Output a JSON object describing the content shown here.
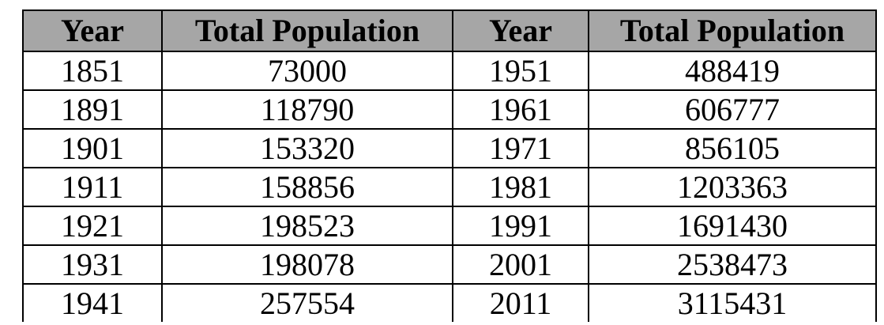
{
  "table": {
    "headers": [
      "Year",
      "Total Population",
      "Year",
      "Total Population"
    ],
    "rows": [
      [
        "1851",
        "73000",
        "1951",
        "488419"
      ],
      [
        "1891",
        "118790",
        "1961",
        "606777"
      ],
      [
        "1901",
        "153320",
        "1971",
        "856105"
      ],
      [
        "1911",
        "158856",
        "1981",
        "1203363"
      ],
      [
        "1921",
        "198523",
        "1991",
        "1691430"
      ],
      [
        "1931",
        "198078",
        "2001",
        "2538473"
      ],
      [
        "1941",
        "257554",
        "2011",
        "3115431"
      ]
    ]
  },
  "colors": {
    "header_background": "#a6a6a6",
    "border": "#000000",
    "text": "#000000"
  }
}
